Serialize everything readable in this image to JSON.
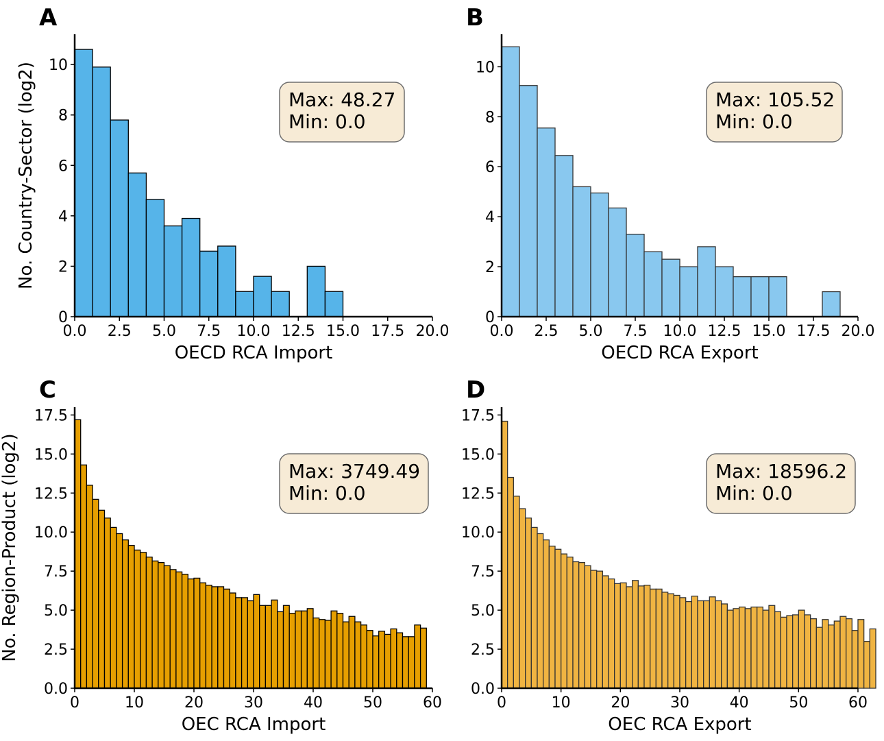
{
  "figure": {
    "background": "#ffffff"
  },
  "chart_data": [
    {
      "panel": "A",
      "type": "bar",
      "xlabel": "OECD RCA Import",
      "ylabel": "No. Country-Sector (log2)",
      "xlim": [
        0,
        20
      ],
      "ylim": [
        0,
        11.2
      ],
      "xticks": [
        0,
        2.5,
        5,
        7.5,
        10,
        12.5,
        15,
        17.5,
        20
      ],
      "xtick_labels": [
        "0.0",
        "2.5",
        "5.0",
        "7.5",
        "10.0",
        "12.5",
        "15.0",
        "17.5",
        "20.0"
      ],
      "yticks": [
        0,
        2,
        4,
        6,
        8,
        10
      ],
      "ytick_labels": [
        "0",
        "2",
        "4",
        "6",
        "8",
        "10"
      ],
      "bin_width": 1,
      "values": [
        10.6,
        9.9,
        7.8,
        5.7,
        4.65,
        3.6,
        3.9,
        2.6,
        2.8,
        1.0,
        1.6,
        1.0,
        0,
        2.0,
        1.0
      ],
      "color": "#56b4e9",
      "edge_color": "#000000",
      "stats": {
        "max_label": "Max: 48.27",
        "min_label": "Min: 0.0"
      }
    },
    {
      "panel": "B",
      "type": "bar",
      "xlabel": "OECD RCA Export",
      "ylabel": "",
      "xlim": [
        0,
        20
      ],
      "ylim": [
        0,
        11.3
      ],
      "xticks": [
        0,
        2.5,
        5,
        7.5,
        10,
        12.5,
        15,
        17.5,
        20
      ],
      "xtick_labels": [
        "0.0",
        "2.5",
        "5.0",
        "7.5",
        "10.0",
        "12.5",
        "15.0",
        "17.5",
        "20.0"
      ],
      "yticks": [
        0,
        2,
        4,
        6,
        8,
        10
      ],
      "ytick_labels": [
        "0",
        "2",
        "4",
        "6",
        "8",
        "10"
      ],
      "bin_width": 1,
      "values": [
        10.8,
        9.25,
        7.55,
        6.45,
        5.2,
        4.95,
        4.35,
        3.3,
        2.6,
        2.3,
        2.0,
        2.8,
        2.0,
        1.6,
        1.6,
        1.6,
        0,
        0,
        1.0
      ],
      "color": "#89c8ef",
      "edge_color": "#333333",
      "stats": {
        "max_label": "Max: 105.52",
        "min_label": "Min: 0.0"
      }
    },
    {
      "panel": "C",
      "type": "bar",
      "xlabel": "OEC RCA Import",
      "ylabel": "No. Region-Product (log2)",
      "xlim": [
        0,
        60
      ],
      "ylim": [
        0,
        18
      ],
      "xticks": [
        0,
        10,
        20,
        30,
        40,
        50,
        60
      ],
      "xtick_labels": [
        "0",
        "10",
        "20",
        "30",
        "40",
        "50",
        "60"
      ],
      "yticks": [
        0,
        2.5,
        5,
        7.5,
        10,
        12.5,
        15,
        17.5
      ],
      "ytick_labels": [
        "0.0",
        "2.5",
        "5.0",
        "7.5",
        "10.0",
        "12.5",
        "15.0",
        "17.5"
      ],
      "bin_width": 1,
      "values": [
        17.2,
        14.3,
        13.0,
        12.1,
        11.4,
        10.9,
        10.3,
        9.9,
        9.5,
        9.15,
        8.85,
        8.7,
        8.4,
        8.15,
        8.05,
        7.85,
        7.6,
        7.45,
        7.3,
        7.0,
        7.05,
        6.75,
        6.6,
        6.5,
        6.5,
        6.35,
        6.1,
        5.8,
        5.8,
        5.6,
        6.0,
        5.3,
        5.3,
        5.65,
        4.9,
        5.3,
        4.8,
        4.95,
        4.95,
        5.1,
        4.5,
        4.4,
        4.35,
        4.95,
        4.8,
        4.25,
        4.6,
        4.25,
        4.05,
        3.7,
        3.35,
        3.65,
        3.45,
        3.8,
        3.55,
        3.3,
        3.3,
        4.05,
        3.85
      ],
      "color": "#e69f00",
      "edge_color": "#000000",
      "stats": {
        "max_label": "Max: 3749.49",
        "min_label": "Min: 0.0"
      }
    },
    {
      "panel": "D",
      "type": "bar",
      "xlabel": "OEC RCA Export",
      "ylabel": "",
      "xlim": [
        0,
        60
      ],
      "ylim": [
        0,
        18
      ],
      "xticks": [
        0,
        10,
        20,
        30,
        40,
        50,
        60
      ],
      "xtick_labels": [
        "0",
        "10",
        "20",
        "30",
        "40",
        "50",
        "60"
      ],
      "yticks": [
        0,
        2.5,
        5,
        7.5,
        10,
        12.5,
        15,
        17.5
      ],
      "ytick_labels": [
        "0.0",
        "2.5",
        "5.0",
        "7.5",
        "10.0",
        "12.5",
        "15.0",
        "17.5"
      ],
      "bin_width": 1,
      "values": [
        17.1,
        13.5,
        12.3,
        11.5,
        10.9,
        10.3,
        9.9,
        9.5,
        9.1,
        8.9,
        8.6,
        8.4,
        8.1,
        8.05,
        7.85,
        7.55,
        7.5,
        7.2,
        7.0,
        6.7,
        6.75,
        6.5,
        6.9,
        6.55,
        6.6,
        6.35,
        6.35,
        6.15,
        6.05,
        5.95,
        5.8,
        5.55,
        5.9,
        5.6,
        5.6,
        5.85,
        5.6,
        5.4,
        5.0,
        5.1,
        5.2,
        5.1,
        5.2,
        5.2,
        5.0,
        5.3,
        4.9,
        4.55,
        4.65,
        4.7,
        5.0,
        4.7,
        4.45,
        3.9,
        4.4,
        4.05,
        4.3,
        4.6,
        4.45,
        3.7,
        4.4,
        3.0,
        3.8
      ],
      "color": "#f0b442",
      "edge_color": "#333333",
      "stats": {
        "max_label": "Max: 18596.2",
        "min_label": "Min: 0.0"
      }
    }
  ]
}
